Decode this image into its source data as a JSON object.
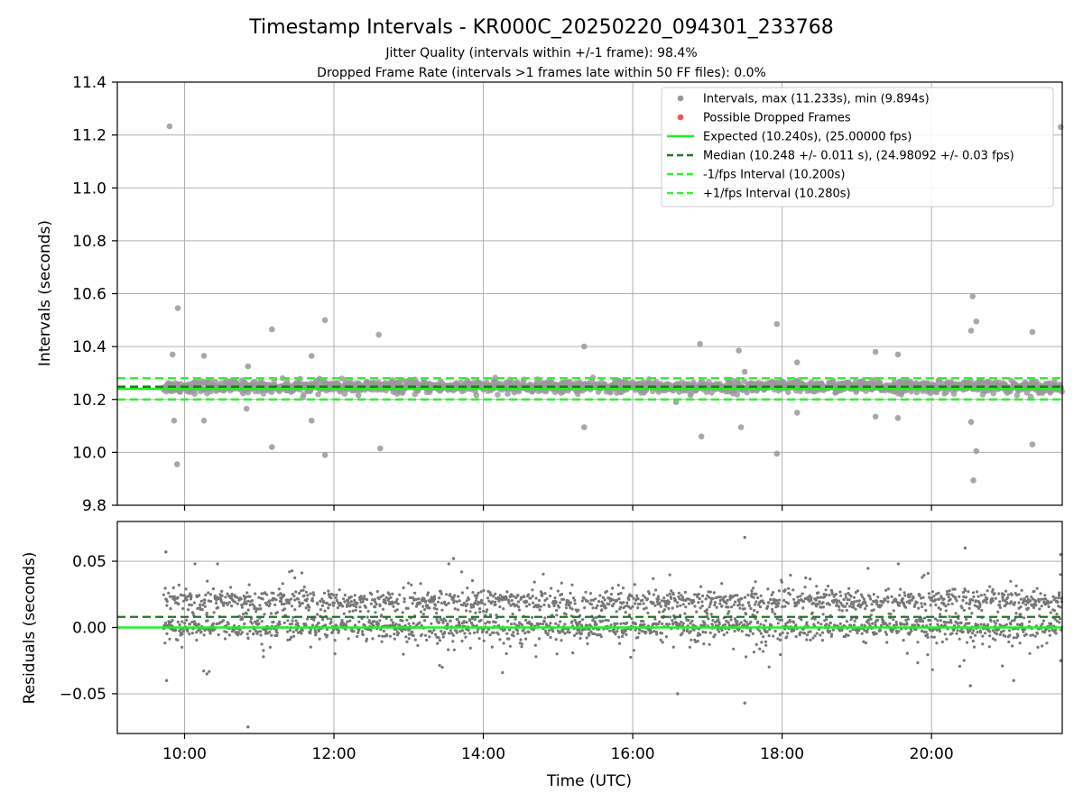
{
  "title": "Timestamp Intervals - KR000C_20250220_094301_233768",
  "subtitle_lines": [
    "Jitter Quality (intervals within +/-1 frame): 98.4%",
    "Dropped Frame Rate (intervals >1 frames late within 50 FF files): 0.0%"
  ],
  "colors": {
    "interval_points": "#999999",
    "residual_points": "#777777",
    "dropped": "#ee5555",
    "expected": "#22ee22",
    "median": "#1a7a1a",
    "fps_bounds": "#33ee33",
    "grid": "#b0b0b0",
    "axis": "#000000"
  },
  "chart_data": [
    {
      "type": "scatter",
      "name": "intervals",
      "xlabel": "",
      "ylabel": "Intervals (seconds)",
      "xlim_hours": [
        9.1,
        21.75
      ],
      "ylim": [
        9.8,
        11.4
      ],
      "yticks": [
        9.8,
        10.0,
        10.2,
        10.4,
        10.6,
        10.8,
        11.0,
        11.2,
        11.4
      ],
      "ytick_labels": [
        "9.8",
        "10.0",
        "10.2",
        "10.4",
        "10.6",
        "10.8",
        "11.0",
        "11.2",
        "11.4"
      ],
      "xticks_hours": [
        10,
        12,
        14,
        16,
        18,
        20
      ],
      "grid": true,
      "legend_position": "top-right",
      "legend": [
        {
          "key": "intervals",
          "label": "Intervals, max (11.233s), min (9.894s)"
        },
        {
          "key": "dropped",
          "label": "Possible Dropped Frames"
        },
        {
          "key": "expected",
          "label": "Expected (10.240s), (25.00000 fps)"
        },
        {
          "key": "median",
          "label": "Median (10.248 +/- 0.011 s), (24.98092 +/- 0.03 fps)"
        },
        {
          "key": "minus_fps",
          "label": "-1/fps Interval (10.200s)"
        },
        {
          "key": "plus_fps",
          "label": "+1/fps Interval (10.280s)"
        }
      ],
      "expected_interval": 10.24,
      "median_interval": 10.248,
      "minus_fps_interval": 10.2,
      "plus_fps_interval": 10.28,
      "max_interval": 11.233,
      "min_interval": 9.894,
      "data_start_hours": 9.72,
      "band_core": {
        "center": 10.248,
        "spread": 0.025
      },
      "dropped_frames": [],
      "outliers": [
        {
          "t": 9.8,
          "v": 11.233
        },
        {
          "t": 9.91,
          "v": 10.545
        },
        {
          "t": 9.84,
          "v": 10.37
        },
        {
          "t": 9.86,
          "v": 10.12
        },
        {
          "t": 9.9,
          "v": 9.955
        },
        {
          "t": 10.26,
          "v": 10.365
        },
        {
          "t": 10.26,
          "v": 10.12
        },
        {
          "t": 10.85,
          "v": 10.325
        },
        {
          "t": 10.83,
          "v": 10.165
        },
        {
          "t": 11.17,
          "v": 10.465
        },
        {
          "t": 11.17,
          "v": 10.02
        },
        {
          "t": 11.7,
          "v": 10.365
        },
        {
          "t": 11.7,
          "v": 10.12
        },
        {
          "t": 11.88,
          "v": 10.5
        },
        {
          "t": 11.88,
          "v": 9.99
        },
        {
          "t": 12.6,
          "v": 10.445
        },
        {
          "t": 12.62,
          "v": 10.015
        },
        {
          "t": 15.35,
          "v": 10.4
        },
        {
          "t": 15.35,
          "v": 10.095
        },
        {
          "t": 16.58,
          "v": 10.19
        },
        {
          "t": 16.9,
          "v": 10.41
        },
        {
          "t": 16.92,
          "v": 10.06
        },
        {
          "t": 17.42,
          "v": 10.385
        },
        {
          "t": 17.45,
          "v": 10.095
        },
        {
          "t": 17.5,
          "v": 10.305
        },
        {
          "t": 17.93,
          "v": 10.485
        },
        {
          "t": 17.93,
          "v": 9.995
        },
        {
          "t": 18.2,
          "v": 10.34
        },
        {
          "t": 18.2,
          "v": 10.15
        },
        {
          "t": 19.25,
          "v": 10.38
        },
        {
          "t": 19.25,
          "v": 10.135
        },
        {
          "t": 19.55,
          "v": 10.37
        },
        {
          "t": 19.55,
          "v": 10.13
        },
        {
          "t": 20.53,
          "v": 10.46
        },
        {
          "t": 20.53,
          "v": 10.115
        },
        {
          "t": 20.55,
          "v": 10.59
        },
        {
          "t": 20.6,
          "v": 10.495
        },
        {
          "t": 20.6,
          "v": 10.005
        },
        {
          "t": 20.56,
          "v": 9.894
        },
        {
          "t": 21.35,
          "v": 10.455
        },
        {
          "t": 21.35,
          "v": 10.03
        },
        {
          "t": 21.73,
          "v": 11.23
        }
      ]
    },
    {
      "type": "scatter",
      "name": "residuals",
      "xlabel": "Time (UTC)",
      "ylabel": "Residuals (seconds)",
      "xlim_hours": [
        9.1,
        21.75
      ],
      "ylim": [
        -0.08,
        0.08
      ],
      "yticks": [
        -0.05,
        0.0,
        0.05
      ],
      "ytick_labels": [
        "−0.05",
        "0.00",
        "0.05"
      ],
      "xticks_hours": [
        10,
        12,
        14,
        16,
        18,
        20
      ],
      "xtick_labels": [
        "10:00",
        "12:00",
        "14:00",
        "16:00",
        "18:00",
        "20:00"
      ],
      "grid": true,
      "expected_residual": 0.0,
      "median_residual": 0.008,
      "data_start_hours": 9.72,
      "point_count": 2800,
      "band_core": {
        "center": 0.008,
        "spread": 0.022
      },
      "outliers": [
        {
          "t": 9.75,
          "v": 0.057
        },
        {
          "t": 9.76,
          "v": -0.04
        },
        {
          "t": 10.3,
          "v": -0.035
        },
        {
          "t": 10.85,
          "v": -0.075
        },
        {
          "t": 13.6,
          "v": 0.052
        },
        {
          "t": 13.45,
          "v": -0.03
        },
        {
          "t": 16.6,
          "v": -0.05
        },
        {
          "t": 17.5,
          "v": 0.068
        },
        {
          "t": 17.5,
          "v": -0.057
        },
        {
          "t": 20.45,
          "v": 0.06
        },
        {
          "t": 20.52,
          "v": -0.044
        },
        {
          "t": 21.1,
          "v": -0.04
        },
        {
          "t": 21.73,
          "v": 0.055
        },
        {
          "t": 21.73,
          "v": -0.025
        }
      ]
    }
  ]
}
